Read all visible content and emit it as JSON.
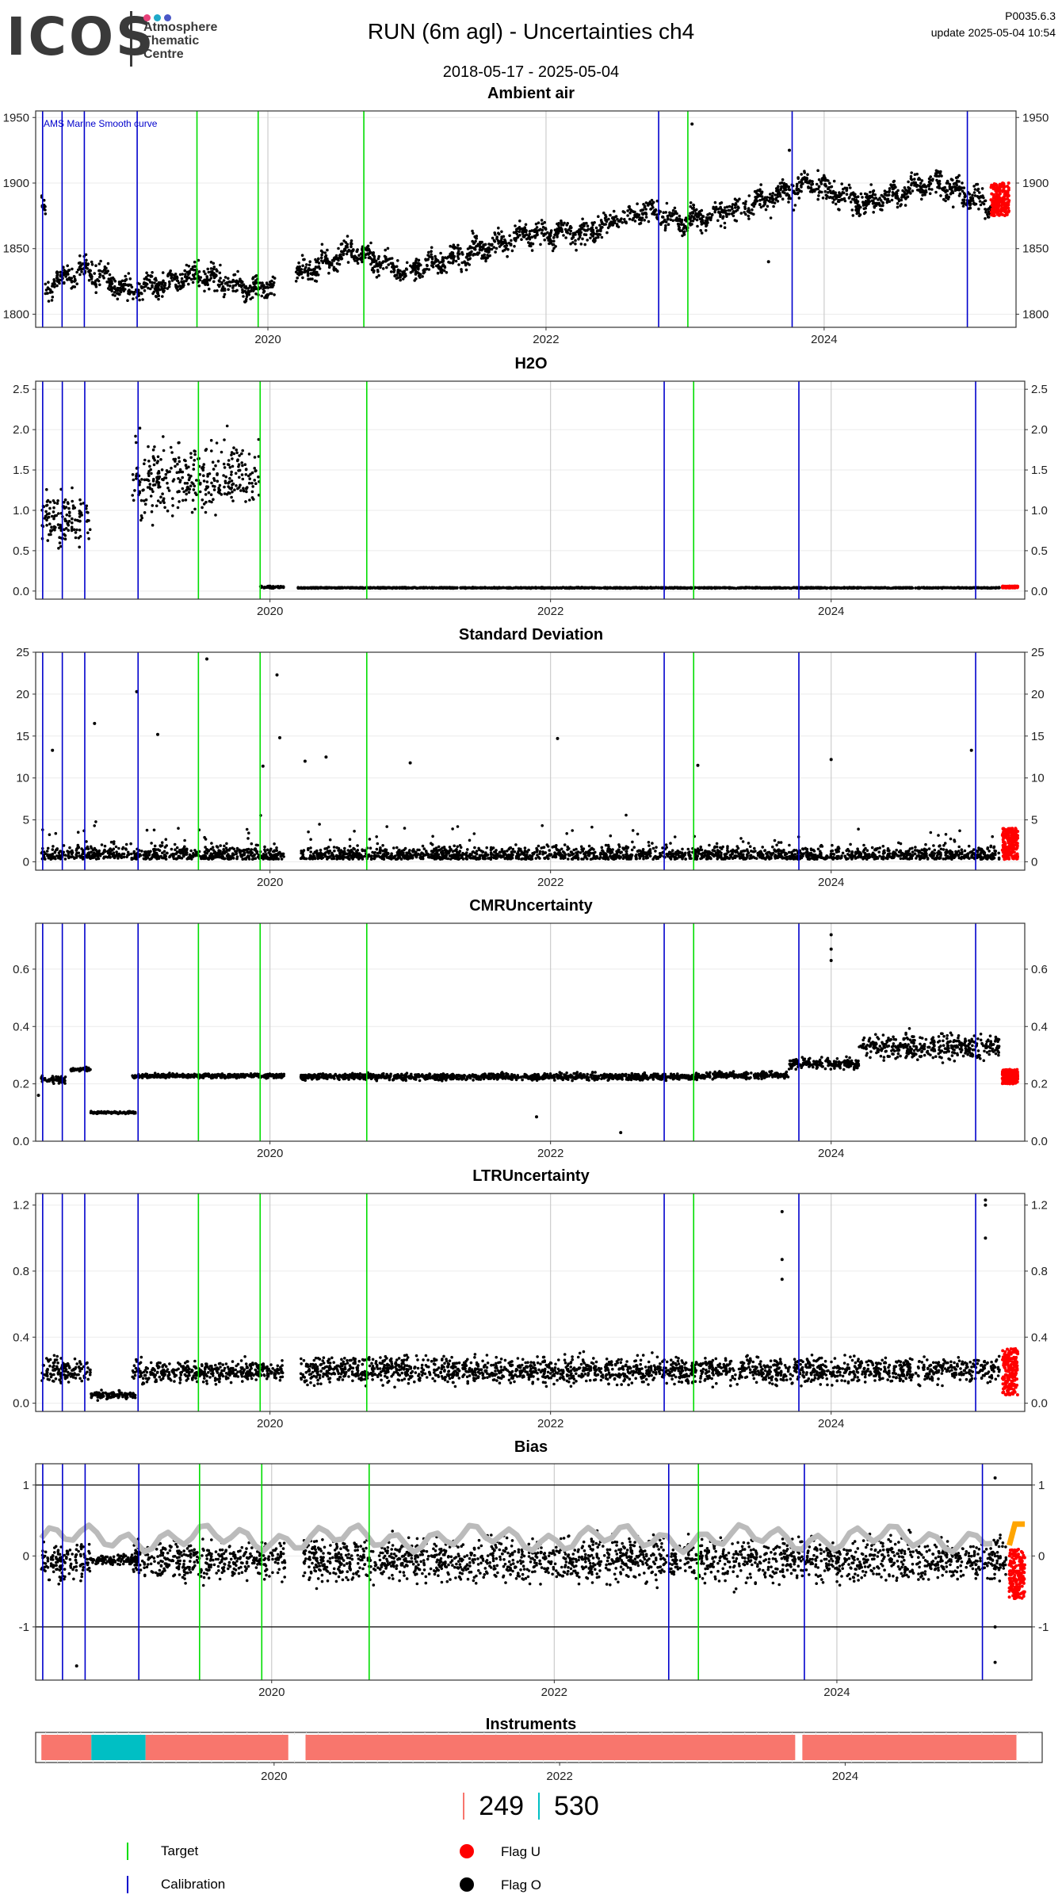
{
  "header": {
    "logo_text": "ICOS",
    "logo_sub": [
      "Atmosphere",
      "Thematic",
      "Centre"
    ],
    "logo_dot_colors": [
      "#e8417a",
      "#1fa9c9",
      "#4a57c7"
    ],
    "title": "RUN  (6m agl) - Uncertainties ch4",
    "date_range": "2018-05-17 - 2025-05-04",
    "version": "P0035.6.3",
    "updated": "update  2025-05-04 10:54"
  },
  "colors": {
    "target": "#00dd00",
    "calibration": "#0000cc",
    "flag_u": "#ff0000",
    "flag_o": "#000000",
    "smooth": "#bbbbbb",
    "bias_orange": "#ffa500",
    "instrument_a": "#f8766d",
    "instrument_b": "#00bfc4"
  },
  "chart_data": [
    {
      "type": "scatter",
      "title": "Ambient air",
      "annotation": "AMS Marine Smooth curve",
      "x_ticks": [
        "2020",
        "2022",
        "2024"
      ],
      "y_ticks": [
        "1800",
        "1850",
        "1900",
        "1950"
      ],
      "ylim": [
        1790,
        1955
      ],
      "trend": [
        [
          2018.4,
          1822
        ],
        [
          2018.7,
          1835
        ],
        [
          2019.0,
          1818
        ],
        [
          2019.5,
          1830
        ],
        [
          2019.9,
          1818
        ],
        [
          2020.2,
          1830
        ],
        [
          2020.6,
          1848
        ],
        [
          2021.0,
          1832
        ],
        [
          2021.5,
          1848
        ],
        [
          2021.9,
          1862
        ],
        [
          2022.3,
          1862
        ],
        [
          2022.7,
          1880
        ],
        [
          2023.0,
          1870
        ],
        [
          2023.5,
          1885
        ],
        [
          2023.9,
          1900
        ],
        [
          2024.3,
          1884
        ],
        [
          2024.8,
          1902
        ],
        [
          2025.2,
          1882
        ]
      ],
      "spread": 12,
      "gaps": [
        [
          2020.05,
          2020.2
        ]
      ],
      "flag_u_range": [
        2025.2,
        2025.33
      ],
      "flag_u_level": [
        1875,
        1900
      ],
      "outliers": [
        [
          2023.05,
          1945
        ],
        [
          2023.75,
          1925
        ],
        [
          2023.6,
          1840
        ]
      ],
      "gridlines": "vertical at year ticks",
      "right_axis": true
    },
    {
      "type": "scatter",
      "title": "H2O",
      "x_ticks": [
        "2020",
        "2022",
        "2024"
      ],
      "y_ticks": [
        "0.0",
        "0.5",
        "1.0",
        "1.5",
        "2.0",
        "2.5"
      ],
      "ylim": [
        -0.1,
        2.6
      ],
      "segments": [
        {
          "from": 2018.37,
          "to": 2018.72,
          "mean": 0.9,
          "spread": 0.6
        },
        {
          "from": 2019.02,
          "to": 2019.93,
          "mean": 1.4,
          "spread": 0.7
        },
        {
          "from": 2019.93,
          "to": 2020.1,
          "mean": 0.05,
          "spread": 0.02
        },
        {
          "from": 2020.2,
          "to": 2025.2,
          "mean": 0.04,
          "spread": 0.01
        }
      ],
      "flag_u_range": [
        2025.22,
        2025.33
      ],
      "flag_u_level": [
        0.04,
        0.06
      ],
      "outliers": [],
      "right_axis": true
    },
    {
      "type": "scatter",
      "title": "Standard Deviation",
      "x_ticks": [
        "2020",
        "2022",
        "2024"
      ],
      "y_ticks": [
        "0",
        "5",
        "10",
        "15",
        "20",
        "25"
      ],
      "ylim": [
        -1,
        25
      ],
      "segments": [
        {
          "from": 2018.37,
          "to": 2020.1,
          "mean": 1.2,
          "spread": 1.4
        },
        {
          "from": 2020.22,
          "to": 2025.2,
          "mean": 1.2,
          "spread": 1.4
        }
      ],
      "flag_u_range": [
        2025.22,
        2025.33
      ],
      "flag_u_level": [
        0.3,
        4
      ],
      "outliers": [
        [
          2018.45,
          13.3
        ],
        [
          2018.75,
          16.5
        ],
        [
          2019.05,
          20.3
        ],
        [
          2019.2,
          15.2
        ],
        [
          2019.55,
          24.2
        ],
        [
          2020.05,
          22.3
        ],
        [
          2020.07,
          14.8
        ],
        [
          2019.95,
          11.4
        ],
        [
          2022.05,
          14.7
        ],
        [
          2023.05,
          11.5
        ],
        [
          2024.0,
          12.2
        ],
        [
          2025.0,
          13.3
        ],
        [
          2021.0,
          11.8
        ],
        [
          2020.4,
          12.5
        ],
        [
          2020.25,
          12
        ]
      ],
      "right_axis": true
    },
    {
      "type": "scatter",
      "title": "CMRUncertainty",
      "x_ticks": [
        "2020",
        "2022",
        "2024"
      ],
      "y_ticks": [
        "0.0",
        "0.2",
        "0.4",
        "0.6"
      ],
      "ylim": [
        0,
        0.76
      ],
      "segments": [
        {
          "from": 2018.37,
          "to": 2018.55,
          "mean": 0.215,
          "spread": 0.02
        },
        {
          "from": 2018.58,
          "to": 2018.72,
          "mean": 0.25,
          "spread": 0.01
        },
        {
          "from": 2018.72,
          "to": 2019.05,
          "mean": 0.1,
          "spread": 0.006
        },
        {
          "from": 2019.02,
          "to": 2020.1,
          "mean": 0.228,
          "spread": 0.012
        },
        {
          "from": 2020.22,
          "to": 2023.1,
          "mean": 0.225,
          "spread": 0.018
        },
        {
          "from": 2023.1,
          "to": 2023.7,
          "mean": 0.23,
          "spread": 0.02
        },
        {
          "from": 2023.7,
          "to": 2024.2,
          "mean": 0.27,
          "spread": 0.03
        },
        {
          "from": 2024.2,
          "to": 2025.2,
          "mean": 0.33,
          "spread": 0.07
        }
      ],
      "flag_u_range": [
        2025.22,
        2025.33
      ],
      "flag_u_level": [
        0.2,
        0.25
      ],
      "outliers": [
        [
          2024.0,
          0.72
        ],
        [
          2024.0,
          0.67
        ],
        [
          2024.0,
          0.63
        ],
        [
          2021.9,
          0.085
        ],
        [
          2022.5,
          0.03
        ],
        [
          2018.35,
          0.16
        ]
      ],
      "right_axis": true
    },
    {
      "type": "scatter",
      "title": "LTRUncertainty",
      "x_ticks": [
        "2020",
        "2022",
        "2024"
      ],
      "y_ticks": [
        "0.0",
        "0.4",
        "0.8",
        "1.2"
      ],
      "ylim": [
        -0.05,
        1.27
      ],
      "segments": [
        {
          "from": 2018.37,
          "to": 2018.72,
          "mean": 0.2,
          "spread": 0.12
        },
        {
          "from": 2018.72,
          "to": 2019.05,
          "mean": 0.05,
          "spread": 0.04
        },
        {
          "from": 2019.02,
          "to": 2020.1,
          "mean": 0.19,
          "spread": 0.1
        },
        {
          "from": 2020.22,
          "to": 2025.2,
          "mean": 0.2,
          "spread": 0.13
        }
      ],
      "flag_u_range": [
        2025.22,
        2025.33
      ],
      "flag_u_level": [
        0.05,
        0.33
      ],
      "outliers": [
        [
          2023.65,
          1.16
        ],
        [
          2023.65,
          0.87
        ],
        [
          2023.65,
          0.75
        ],
        [
          2025.1,
          1.23
        ],
        [
          2025.1,
          1.2
        ],
        [
          2025.1,
          1.0
        ]
      ],
      "right_axis": true
    },
    {
      "type": "line",
      "title": "Bias",
      "x_ticks": [
        "2020",
        "2022",
        "2024"
      ],
      "y_ticks": [
        "-1",
        "0",
        "1"
      ],
      "ylim": [
        -1.75,
        1.3
      ],
      "hlines": [
        1,
        -1
      ],
      "segments": [
        {
          "from": 2018.37,
          "to": 2018.72,
          "mean": -0.1,
          "spread": 0.45
        },
        {
          "from": 2018.72,
          "to": 2019.05,
          "mean": -0.05,
          "spread": 0.12
        },
        {
          "from": 2019.02,
          "to": 2020.1,
          "mean": -0.05,
          "spread": 0.45
        },
        {
          "from": 2020.22,
          "to": 2025.2,
          "mean": -0.05,
          "spread": 0.5
        }
      ],
      "smooth_level": 0.25,
      "orange_segment": [
        [
          2025.22,
          0.15
        ],
        [
          2025.26,
          0.45
        ],
        [
          2025.33,
          0.45
        ]
      ],
      "flag_u_range": [
        2025.22,
        2025.33
      ],
      "flag_u_level": [
        -0.6,
        0.1
      ],
      "outliers": [
        [
          2025.12,
          -1.5
        ],
        [
          2025.12,
          -1.0
        ],
        [
          2025.12,
          1.1
        ],
        [
          2018.62,
          -1.55
        ]
      ],
      "right_axis": true
    }
  ],
  "instruments": {
    "title": "Instruments",
    "x_ticks": [
      "2020",
      "2022",
      "2024"
    ],
    "blocks": [
      {
        "from": 2018.37,
        "to": 2018.72,
        "color": "#f8766d"
      },
      {
        "from": 2018.72,
        "to": 2019.1,
        "color": "#00bfc4"
      },
      {
        "from": 2019.1,
        "to": 2020.1,
        "color": "#f8766d"
      },
      {
        "from": 2020.22,
        "to": 2025.2,
        "color": "#f8766d"
      }
    ],
    "gaps": [
      [
        2020.1,
        2020.22
      ],
      [
        2023.65,
        2023.7
      ],
      [
        2025.2,
        2025.33
      ]
    ]
  },
  "counts": {
    "a_value": "249",
    "b_value": "530"
  },
  "legend": [
    {
      "label": "Target",
      "kind": "line",
      "color": "#00dd00"
    },
    {
      "label": "Calibration",
      "kind": "line",
      "color": "#0000cc"
    },
    {
      "label": "Flag U",
      "kind": "dot",
      "color": "#ff0000"
    },
    {
      "label": "Flag O",
      "kind": "dot",
      "color": "#000000"
    }
  ],
  "events": {
    "calibration_years": [
      2018.38,
      2018.52,
      2018.68,
      2019.06,
      2022.81,
      2023.77,
      2025.03
    ],
    "target_years": [
      2019.49,
      2019.93,
      2020.69,
      2023.02
    ]
  }
}
